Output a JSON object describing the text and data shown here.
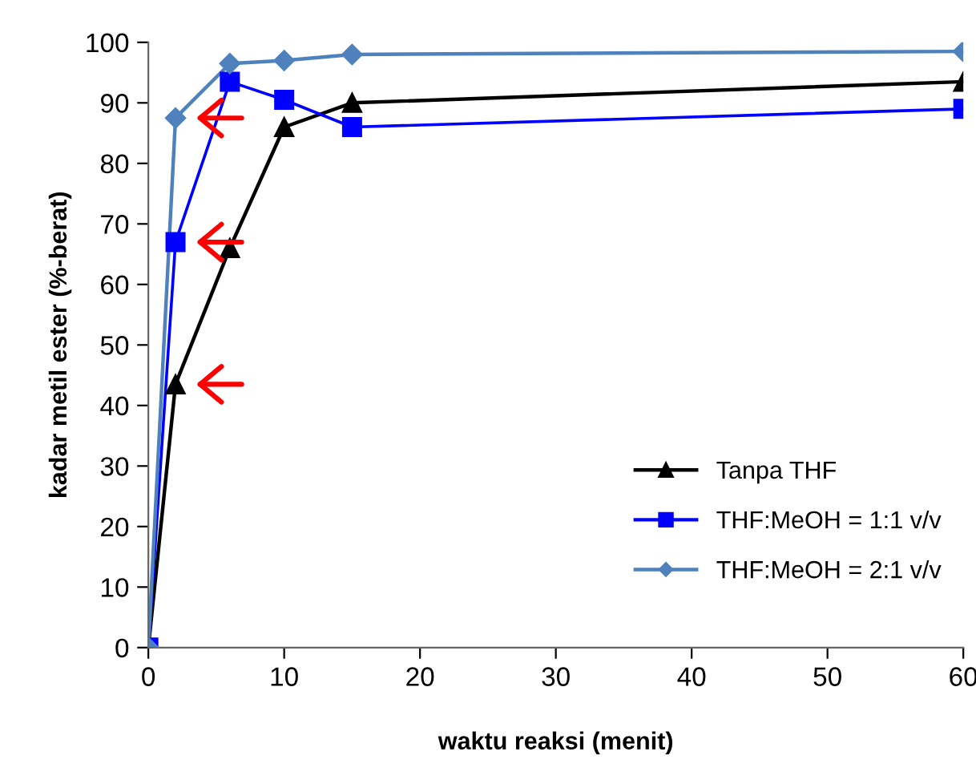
{
  "chart_data": {
    "type": "line",
    "xlabel": "waktu reaksi (menit)",
    "ylabel": "kadar metil ester (%-berat)",
    "xlim": [
      0,
      60
    ],
    "xticks": [
      0,
      10,
      20,
      30,
      40,
      50,
      60
    ],
    "ylim": [
      0,
      100
    ],
    "yticks": [
      0,
      10,
      20,
      30,
      40,
      50,
      60,
      70,
      80,
      90,
      100
    ],
    "grid": false,
    "legend": "bottom right",
    "line_style": "solid",
    "series": [
      {
        "name": "Tanpa THF",
        "color": "#000000",
        "marker": "triangle",
        "x": [
          0,
          2,
          6,
          10,
          15,
          60
        ],
        "values": [
          0,
          43.5,
          66,
          86,
          90,
          93.5
        ]
      },
      {
        "name": "THF:MeOH = 1:1 v/v",
        "color": "#0000ff",
        "marker": "square",
        "x": [
          0,
          2,
          6,
          10,
          15,
          60
        ],
        "values": [
          0,
          67,
          93.5,
          90.5,
          86,
          89
        ]
      },
      {
        "name": "THF:MeOH = 2:1 v/v",
        "color": "#4f81bd",
        "marker": "diamond",
        "x": [
          0,
          2,
          6,
          10,
          15,
          60
        ],
        "values": [
          0,
          87.5,
          96.5,
          97,
          98,
          98.5
        ]
      }
    ]
  }
}
